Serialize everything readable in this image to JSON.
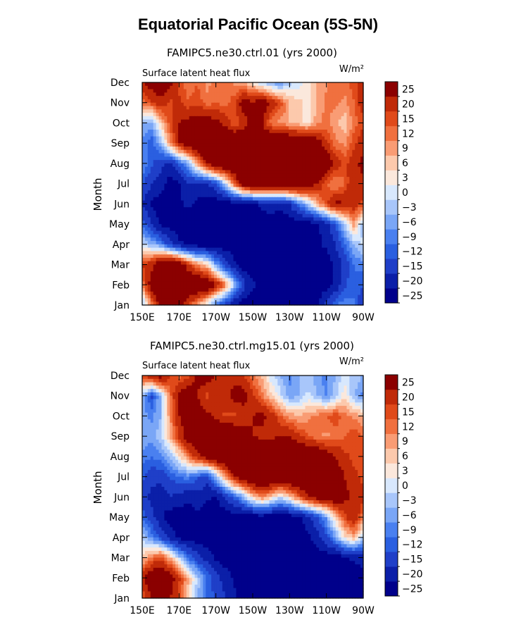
{
  "title": "Equatorial Pacific Ocean (5S-5N)",
  "colors": [
    "#00008b",
    "#0b1fa8",
    "#1f3fc8",
    "#2a5fe0",
    "#4a80f0",
    "#7aa6f6",
    "#a8c6fa",
    "#d8e8fd",
    "#fbe8dc",
    "#fcc9ac",
    "#f99c74",
    "#f0703f",
    "#e04a1a",
    "#c02a08",
    "#8b0000"
  ],
  "colorbar_labels": [
    "25",
    "20",
    "15",
    "12",
    "9",
    "6",
    "3",
    "0",
    "−3",
    "−6",
    "−9",
    "−12",
    "−15",
    "−20",
    "−25"
  ],
  "chart_data": [
    {
      "type": "heatmap",
      "title": "FAMIPC5.ne30.ctrl.01 (yrs 2000)",
      "left_label": "Surface latent heat flux",
      "units": "W/m²",
      "ylabel": "Month",
      "xticks": [
        "150E",
        "170E",
        "170W",
        "150W",
        "130W",
        "110W",
        "90W"
      ],
      "yticks": [
        "Jan",
        "Feb",
        "Mar",
        "Apr",
        "May",
        "Jun",
        "Jul",
        "Aug",
        "Sep",
        "Oct",
        "Nov",
        "Dec"
      ],
      "xlim": [
        150,
        270
      ],
      "levels": [
        -25,
        -20,
        -15,
        -12,
        -9,
        -6,
        -3,
        0,
        3,
        6,
        9,
        12,
        15,
        20,
        25
      ],
      "values": [
        [
          -6,
          9,
          22,
          26,
          23,
          15,
          6,
          -1,
          -12,
          -18,
          -25,
          -28,
          -28,
          -28,
          -28,
          -28,
          -28,
          -28,
          -28,
          -26,
          -18,
          -12,
          -10,
          -12,
          -20
        ],
        [
          9,
          24,
          30,
          30,
          30,
          30,
          30,
          28,
          20,
          10,
          -4,
          -18,
          -24,
          -26,
          -28,
          -28,
          -26,
          -28,
          -28,
          -28,
          -28,
          -24,
          -16,
          -12,
          -15
        ],
        [
          15,
          18,
          26,
          30,
          26,
          16,
          8,
          4,
          -8,
          -18,
          -24,
          -28,
          -28,
          -28,
          -28,
          -28,
          -28,
          -28,
          -28,
          -28,
          -28,
          -24,
          -18,
          -12,
          -10
        ],
        [
          -3,
          -6,
          -10,
          -18,
          -24,
          -26,
          -28,
          -28,
          -28,
          -28,
          -28,
          -28,
          -28,
          -28,
          -28,
          -28,
          -28,
          -28,
          -28,
          -26,
          -24,
          -20,
          -12,
          -6,
          -2
        ],
        [
          -12,
          -20,
          -26,
          -28,
          -28,
          -28,
          -28,
          -28,
          -28,
          -28,
          -28,
          -28,
          -28,
          -28,
          -28,
          -28,
          -28,
          -28,
          -28,
          -26,
          -22,
          -14,
          -4,
          8,
          -6
        ],
        [
          -20,
          -26,
          -28,
          -26,
          -26,
          -24,
          -26,
          -28,
          -28,
          -28,
          -28,
          -28,
          -26,
          -24,
          -22,
          -24,
          -20,
          -12,
          -4,
          6,
          14,
          22,
          20,
          18,
          14
        ],
        [
          -14,
          -20,
          -22,
          -28,
          -26,
          -20,
          -22,
          -20,
          -16,
          -4,
          12,
          26,
          30,
          30,
          30,
          30,
          30,
          30,
          26,
          20,
          12,
          8,
          12,
          20,
          18
        ],
        [
          -8,
          -14,
          -18,
          -22,
          -14,
          -6,
          8,
          20,
          28,
          30,
          30,
          30,
          30,
          30,
          30,
          30,
          30,
          30,
          30,
          30,
          26,
          18,
          14,
          18,
          22
        ],
        [
          -10,
          -14,
          -6,
          8,
          20,
          26,
          30,
          30,
          30,
          30,
          30,
          30,
          30,
          30,
          30,
          30,
          30,
          30,
          28,
          24,
          16,
          10,
          8,
          14,
          18
        ],
        [
          -6,
          -8,
          4,
          14,
          20,
          22,
          24,
          24,
          22,
          18,
          12,
          16,
          24,
          20,
          10,
          8,
          6,
          4,
          2,
          8,
          10,
          6,
          4,
          10,
          14
        ],
        [
          10,
          14,
          18,
          14,
          16,
          12,
          14,
          10,
          12,
          10,
          14,
          24,
          20,
          26,
          18,
          14,
          6,
          4,
          2,
          6,
          10,
          10,
          8,
          12,
          18
        ],
        [
          20,
          24,
          26,
          22,
          14,
          10,
          12,
          8,
          10,
          12,
          8,
          6,
          2,
          -4,
          -6,
          -10,
          -4,
          -2,
          2,
          6,
          8,
          12,
          10,
          14,
          18
        ]
      ]
    },
    {
      "type": "heatmap",
      "title": "FAMIPC5.ne30.ctrl.mg15.01 (yrs 2000)",
      "left_label": "Surface latent heat flux",
      "units": "W/m²",
      "ylabel": "Month",
      "xticks": [
        "150E",
        "170E",
        "170W",
        "150W",
        "130W",
        "110W",
        "90W"
      ],
      "yticks": [
        "Jan",
        "Feb",
        "Mar",
        "Apr",
        "May",
        "Jun",
        "Jul",
        "Aug",
        "Sep",
        "Oct",
        "Nov",
        "Dec"
      ],
      "xlim": [
        150,
        270
      ],
      "levels": [
        -25,
        -20,
        -15,
        -12,
        -9,
        -6,
        -3,
        0,
        3,
        6,
        9,
        12,
        15,
        20,
        25
      ],
      "values": [
        [
          12,
          20,
          24,
          20,
          14,
          4,
          -6,
          -12,
          -16,
          -20,
          -24,
          -28,
          -28,
          -28,
          -28,
          -28,
          -28,
          -28,
          -28,
          -28,
          -28,
          -28,
          -26,
          -28,
          -28
        ],
        [
          18,
          26,
          28,
          24,
          16,
          6,
          -4,
          -12,
          -18,
          -22,
          -26,
          -28,
          -28,
          -28,
          -28,
          -28,
          -28,
          -28,
          -28,
          -28,
          -28,
          -28,
          -28,
          -28,
          -28
        ],
        [
          4,
          10,
          14,
          6,
          -4,
          -12,
          -18,
          -22,
          -26,
          -28,
          -28,
          -28,
          -28,
          -28,
          -28,
          -28,
          -28,
          -28,
          -28,
          -28,
          -28,
          -28,
          -26,
          -24,
          -22
        ],
        [
          -4,
          -10,
          -16,
          -22,
          -26,
          -28,
          -28,
          -28,
          -28,
          -28,
          -28,
          -28,
          -28,
          -28,
          -28,
          -28,
          -28,
          -28,
          -26,
          -22,
          -16,
          -8,
          2,
          6,
          -4
        ],
        [
          -12,
          -18,
          -24,
          -28,
          -28,
          -28,
          -26,
          -28,
          -28,
          -28,
          -28,
          -28,
          -28,
          -28,
          -28,
          -28,
          -28,
          -26,
          -22,
          -16,
          -8,
          4,
          14,
          20,
          10
        ],
        [
          -18,
          -22,
          -24,
          -20,
          -22,
          -24,
          -22,
          -24,
          -26,
          -20,
          -14,
          -6,
          4,
          10,
          4,
          -2,
          4,
          12,
          20,
          24,
          26,
          26,
          22,
          18,
          16
        ],
        [
          -14,
          -18,
          -18,
          -14,
          -12,
          -10,
          -14,
          -18,
          -6,
          8,
          20,
          26,
          30,
          30,
          30,
          30,
          30,
          30,
          30,
          30,
          28,
          24,
          20,
          16,
          14
        ],
        [
          -10,
          -12,
          -10,
          -6,
          2,
          10,
          18,
          24,
          28,
          30,
          30,
          30,
          30,
          30,
          30,
          30,
          30,
          30,
          30,
          28,
          24,
          20,
          16,
          14,
          12
        ],
        [
          -6,
          -8,
          -4,
          6,
          16,
          24,
          28,
          30,
          30,
          30,
          28,
          24,
          20,
          18,
          18,
          20,
          20,
          16,
          12,
          10,
          8,
          10,
          12,
          14,
          12
        ],
        [
          -8,
          -10,
          -6,
          8,
          20,
          24,
          24,
          22,
          18,
          14,
          14,
          16,
          20,
          22,
          18,
          12,
          8,
          6,
          8,
          10,
          12,
          14,
          10,
          8,
          6
        ],
        [
          -4,
          -16,
          -6,
          10,
          22,
          26,
          20,
          14,
          16,
          18,
          22,
          24,
          16,
          10,
          4,
          -2,
          -8,
          -6,
          -2,
          -6,
          -10,
          -4,
          2,
          -6,
          -10
        ],
        [
          14,
          20,
          24,
          16,
          10,
          14,
          22,
          24,
          20,
          16,
          18,
          14,
          10,
          6,
          -2,
          -6,
          -10,
          -6,
          -4,
          -8,
          -10,
          -6,
          -2,
          -4,
          -6
        ]
      ]
    }
  ]
}
